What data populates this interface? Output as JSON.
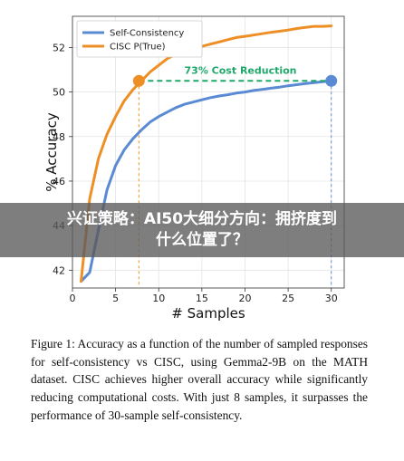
{
  "overlay_banner": {
    "text": "兴证策略：AI50大细分方向：拥挤度到什么位置了？"
  },
  "caption": {
    "text": "Figure 1:  Accuracy as a function of the number of sampled responses for self-consistency vs CISC, using Gemma2-9B on the MATH dataset.  CISC achieves higher overall accuracy while significantly reducing computational costs. With just 8 samples, it surpasses the performance of 30-sample self-consistency."
  },
  "chart_data": {
    "type": "line",
    "xlabel": "# Samples",
    "ylabel": "% Accuracy",
    "xlim": [
      0,
      31.5
    ],
    "ylim": [
      41.2,
      53.4
    ],
    "xticks": [
      0,
      5,
      10,
      15,
      20,
      25,
      30
    ],
    "yticks": [
      42,
      44,
      46,
      48,
      50,
      52
    ],
    "grid": true,
    "legend_position": "top-left",
    "series": [
      {
        "name": "Self-Consistency",
        "color": "#5b8ad4",
        "x": [
          1,
          2,
          3,
          4,
          5,
          6,
          7,
          8,
          9,
          10,
          11,
          12,
          13,
          14,
          15,
          16,
          17,
          18,
          19,
          20,
          21,
          22,
          23,
          24,
          25,
          26,
          27,
          28,
          29,
          30
        ],
        "values": [
          41.5,
          41.9,
          43.8,
          45.6,
          46.7,
          47.4,
          47.9,
          48.3,
          48.65,
          48.9,
          49.1,
          49.3,
          49.45,
          49.55,
          49.65,
          49.75,
          49.82,
          49.88,
          49.95,
          50.0,
          50.07,
          50.12,
          50.17,
          50.22,
          50.28,
          50.33,
          50.38,
          50.42,
          50.46,
          50.5
        ]
      },
      {
        "name": "CISC P(True)",
        "color": "#ee8f25",
        "x": [
          1,
          2,
          3,
          4,
          5,
          6,
          7,
          8,
          9,
          10,
          11,
          12,
          13,
          14,
          15,
          16,
          17,
          18,
          19,
          20,
          21,
          22,
          23,
          24,
          25,
          26,
          27,
          28,
          29,
          30
        ],
        "values": [
          41.5,
          45.2,
          47.0,
          48.1,
          48.9,
          49.6,
          50.1,
          50.5,
          50.9,
          51.2,
          51.5,
          51.7,
          51.85,
          51.95,
          52.05,
          52.15,
          52.25,
          52.35,
          52.45,
          52.5,
          52.56,
          52.62,
          52.68,
          52.73,
          52.78,
          52.85,
          52.9,
          52.95,
          52.95,
          52.97
        ]
      }
    ],
    "annotation": {
      "text": "73% Cost Reduction",
      "color": "#1fa86a",
      "y": 50.5,
      "x_from": 7.7,
      "x_to": 30,
      "marker_color_left": "#ee8f25",
      "marker_color_right": "#5b8ad4"
    }
  }
}
